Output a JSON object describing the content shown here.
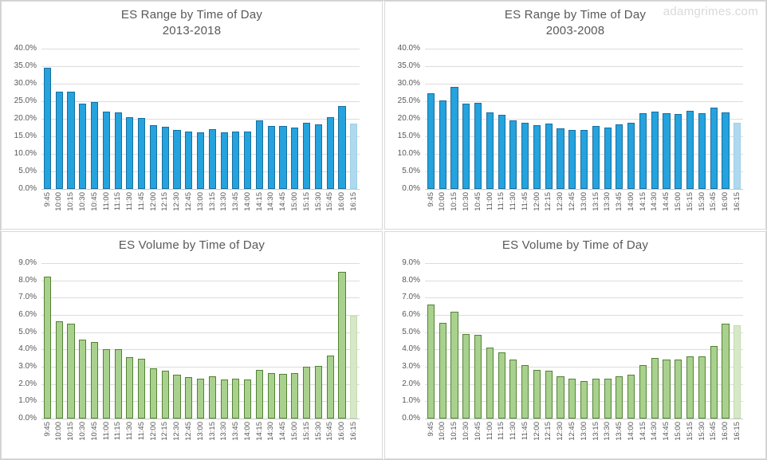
{
  "watermark": "adamgrimes.com",
  "colors": {
    "blue_fill": "#24A3DE",
    "blue_border": "#1A6F9E",
    "blue_light_fill": "#AFD9EE",
    "blue_light_border": "#9ED0E9",
    "green_fill": "#A9D18E",
    "green_border": "#548235",
    "green_light_fill": "#D7E8C9",
    "green_light_border": "#C3DCAE",
    "text": "#595959",
    "gridline": "#DCDCDC"
  },
  "chart_data": [
    {
      "type": "bar",
      "title": "ES Range by Time of Day",
      "subtitle": "2013-2018",
      "color": "blue",
      "highlight_last": true,
      "grid": true,
      "legend": "none",
      "ylim": [
        0,
        40
      ],
      "ytick_labels": [
        "40.0%",
        "35.0%",
        "30.0%",
        "25.0%",
        "20.0%",
        "15.0%",
        "10.0%",
        "5.0%",
        "0.0%"
      ],
      "categories": [
        "9:45",
        "10:00",
        "10:15",
        "10:30",
        "10:45",
        "11:00",
        "11:15",
        "11:30",
        "11:45",
        "12:00",
        "12:15",
        "12:30",
        "12:45",
        "13:00",
        "13:15",
        "13:30",
        "13:45",
        "14:00",
        "14:15",
        "14:30",
        "14:45",
        "15:00",
        "15:15",
        "15:30",
        "15:45",
        "16:00",
        "16:15"
      ],
      "values": [
        34.6,
        27.8,
        27.8,
        24.2,
        24.8,
        22.0,
        21.7,
        20.4,
        20.1,
        18.1,
        17.6,
        16.7,
        16.2,
        16.0,
        16.9,
        16.0,
        16.4,
        16.2,
        19.4,
        18.0,
        17.8,
        17.5,
        18.9,
        18.4,
        20.3,
        23.5,
        18.5
      ]
    },
    {
      "type": "bar",
      "title": "ES Range by Time of Day",
      "subtitle": "2003-2008",
      "color": "blue",
      "highlight_last": true,
      "grid": true,
      "legend": "none",
      "ylim": [
        0,
        40
      ],
      "ytick_labels": [
        "40.0%",
        "35.0%",
        "30.0%",
        "25.0%",
        "20.0%",
        "15.0%",
        "10.0%",
        "5.0%",
        "0.0%"
      ],
      "categories": [
        "9:45",
        "10:00",
        "10:15",
        "10:30",
        "10:45",
        "11:00",
        "11:15",
        "11:30",
        "11:45",
        "12:00",
        "12:15",
        "12:30",
        "12:45",
        "13:00",
        "13:15",
        "13:30",
        "13:45",
        "14:00",
        "14:15",
        "14:30",
        "14:45",
        "15:00",
        "15:15",
        "15:30",
        "15:45",
        "16:00",
        "16:15"
      ],
      "values": [
        27.2,
        25.3,
        29.0,
        24.2,
        24.4,
        21.8,
        21.1,
        19.5,
        18.8,
        18.1,
        18.6,
        17.2,
        16.7,
        16.7,
        17.9,
        17.4,
        18.3,
        18.8,
        21.5,
        22.0,
        21.5,
        21.3,
        22.3,
        21.5,
        23.2,
        21.8,
        18.8
      ]
    },
    {
      "type": "bar",
      "title": "ES Volume by Time of Day",
      "color": "green",
      "highlight_last": true,
      "grid": true,
      "legend": "none",
      "ylim": [
        0,
        9
      ],
      "ytick_labels": [
        "9.0%",
        "8.0%",
        "7.0%",
        "6.0%",
        "5.0%",
        "4.0%",
        "3.0%",
        "2.0%",
        "1.0%",
        "0.0%"
      ],
      "categories": [
        "9:45",
        "10:00",
        "10:15",
        "10:30",
        "10:45",
        "11:00",
        "11:15",
        "11:30",
        "11:45",
        "12:00",
        "12:15",
        "12:30",
        "12:45",
        "13:00",
        "13:15",
        "13:30",
        "13:45",
        "14:00",
        "14:15",
        "14:30",
        "14:45",
        "15:00",
        "15:15",
        "15:30",
        "15:45",
        "16:00",
        "16:15"
      ],
      "values": [
        8.2,
        5.65,
        5.5,
        4.55,
        4.45,
        4.0,
        4.0,
        3.55,
        3.45,
        2.9,
        2.75,
        2.55,
        2.4,
        2.3,
        2.45,
        2.25,
        2.3,
        2.25,
        2.8,
        2.65,
        2.6,
        2.65,
        3.0,
        3.05,
        3.65,
        8.5,
        5.95
      ]
    },
    {
      "type": "bar",
      "title": "ES Volume by Time of Day",
      "color": "green",
      "highlight_last": true,
      "grid": true,
      "legend": "none",
      "ylim": [
        0,
        9
      ],
      "ytick_labels": [
        "9.0%",
        "8.0%",
        "7.0%",
        "6.0%",
        "5.0%",
        "4.0%",
        "3.0%",
        "2.0%",
        "1.0%",
        "0.0%"
      ],
      "categories": [
        "9:45",
        "10:00",
        "10:15",
        "10:30",
        "10:45",
        "11:00",
        "11:15",
        "11:30",
        "11:45",
        "12:00",
        "12:15",
        "12:30",
        "12:45",
        "13:00",
        "13:15",
        "13:30",
        "13:45",
        "14:00",
        "14:15",
        "14:30",
        "14:45",
        "15:00",
        "15:15",
        "15:30",
        "15:45",
        "16:00",
        "16:15"
      ],
      "values": [
        6.6,
        5.55,
        6.2,
        4.9,
        4.85,
        4.1,
        3.85,
        3.4,
        3.1,
        2.8,
        2.75,
        2.45,
        2.3,
        2.15,
        2.3,
        2.3,
        2.45,
        2.55,
        3.1,
        3.5,
        3.4,
        3.4,
        3.6,
        3.6,
        4.2,
        5.5,
        5.4
      ]
    }
  ]
}
